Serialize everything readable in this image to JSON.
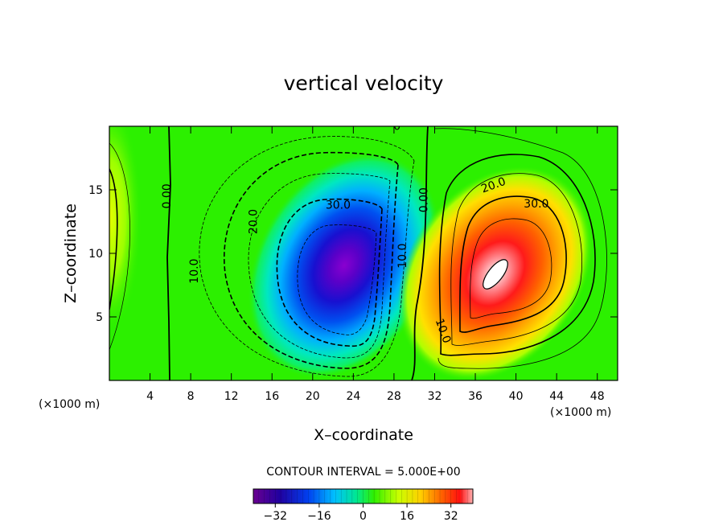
{
  "chart_data": {
    "type": "heatmap",
    "title": "vertical velocity",
    "xlabel": "X–coordinate",
    "ylabel": "Z–coordinate",
    "x_unit": "(×1000 m)",
    "y_unit": "(×1000 m)",
    "xlim": [
      0,
      50
    ],
    "ylim": [
      0,
      20
    ],
    "x_ticks": [
      4,
      8,
      12,
      16,
      20,
      24,
      28,
      32,
      36,
      40,
      44,
      48
    ],
    "y_ticks": [
      5,
      10,
      15
    ],
    "contour_interval_text": "CONTOUR INTERVAL = 5.000E+00",
    "colorbar": {
      "min": -40,
      "max": 40,
      "ticks": [
        -32,
        -16,
        0,
        16,
        32
      ],
      "tick_labels": [
        "−32",
        "−16",
        "0",
        "16",
        "32"
      ]
    },
    "cells": [
      {
        "name": "downdraft",
        "center": [
          23,
          8.8
        ],
        "peak": -40
      },
      {
        "name": "updraft",
        "center": [
          38.5,
          8.4
        ],
        "peak": 40
      },
      {
        "name": "left-edge-updraft",
        "center": [
          0,
          12
        ],
        "peak": 10
      }
    ],
    "contour_labels": [
      {
        "text": "0.00",
        "x": 6.0,
        "y": 14.5
      },
      {
        "text": "0.00",
        "x": 31.3,
        "y": 14.2
      },
      {
        "text": "10.0",
        "x": 8.7,
        "y": 8.6
      },
      {
        "text": "20.0",
        "x": 14.5,
        "y": 12.5
      },
      {
        "text": "30.0",
        "x": 22.5,
        "y": 13.5
      },
      {
        "text": "10.0",
        "x": 29.2,
        "y": 9.8
      },
      {
        "text": "20.0",
        "x": 37.9,
        "y": 15.1
      },
      {
        "text": "30.0",
        "x": 42.0,
        "y": 13.6
      },
      {
        "text": "10.0",
        "x": 32.5,
        "y": 3.8
      },
      {
        "text": "0",
        "x": 28.3,
        "y": 19.7
      }
    ]
  }
}
